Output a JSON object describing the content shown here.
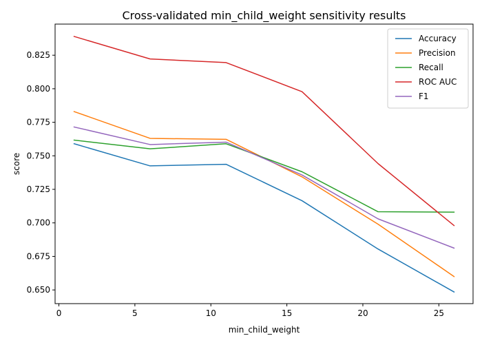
{
  "chart_data": {
    "type": "line",
    "title": "Cross-validated min_child_weight sensitivity results",
    "xlabel": "min_child_weight",
    "ylabel": "score",
    "x": [
      1,
      6,
      11,
      16,
      21,
      26
    ],
    "xlim": [
      -0.25,
      27.25
    ],
    "ylim": [
      0.6398,
      0.8482
    ],
    "xticks": [
      0,
      5,
      10,
      15,
      20,
      25
    ],
    "yticks": [
      0.65,
      0.675,
      0.7,
      0.725,
      0.75,
      0.775,
      0.8,
      0.825
    ],
    "ytick_labels": [
      "0.650",
      "0.675",
      "0.700",
      "0.725",
      "0.750",
      "0.775",
      "0.800",
      "0.825"
    ],
    "grid": false,
    "legend_position": "top-right",
    "series": [
      {
        "name": "Accuracy",
        "color": "#1f77b4",
        "values": [
          0.759,
          0.7425,
          0.7437,
          0.7165,
          0.6805,
          0.6485
        ]
      },
      {
        "name": "Precision",
        "color": "#ff7f0e",
        "values": [
          0.783,
          0.763,
          0.7623,
          0.7343,
          0.699,
          0.66
        ]
      },
      {
        "name": "Recall",
        "color": "#2ca02c",
        "values": [
          0.7617,
          0.7552,
          0.759,
          0.7381,
          0.7083,
          0.708
        ]
      },
      {
        "name": "ROC AUC",
        "color": "#d62728",
        "values": [
          0.839,
          0.8222,
          0.8195,
          0.7978,
          0.7442,
          0.698
        ]
      },
      {
        "name": "F1",
        "color": "#9467bd",
        "values": [
          0.7715,
          0.7584,
          0.7602,
          0.7357,
          0.703,
          0.6812
        ]
      }
    ]
  }
}
